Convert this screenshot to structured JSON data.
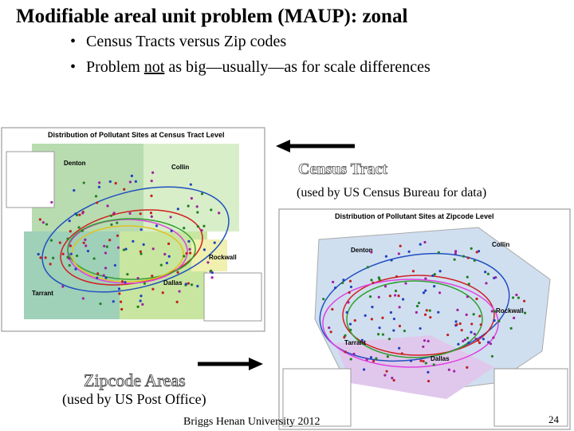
{
  "slide": {
    "title": "Modifiable areal unit problem (MAUP): zonal",
    "bullets": [
      [
        "Census Tracts versus Zip codes"
      ],
      [
        "Problem ",
        "not",
        " as big—usually—as for scale differences"
      ]
    ],
    "census_label": "Census Tract",
    "census_note": "(used by US Census Bureau for data)",
    "zip_label": "Zipcode Areas",
    "zip_note": "(used by US Post Office)",
    "footer": "Briggs Henan University 2012",
    "page_number": "24",
    "map_tract": {
      "title": "Distribution of Pollutant Sites at Census Tract Level",
      "counties": [
        "Denton",
        "Collin",
        "Tarrant",
        "Dallas",
        "Rockwall"
      ]
    },
    "map_zip": {
      "title": "Distribution of Pollutant Sites at Zipcode Level",
      "counties": [
        "Denton",
        "Collin",
        "Tarrant",
        "Dallas",
        "Rockwall"
      ]
    }
  }
}
